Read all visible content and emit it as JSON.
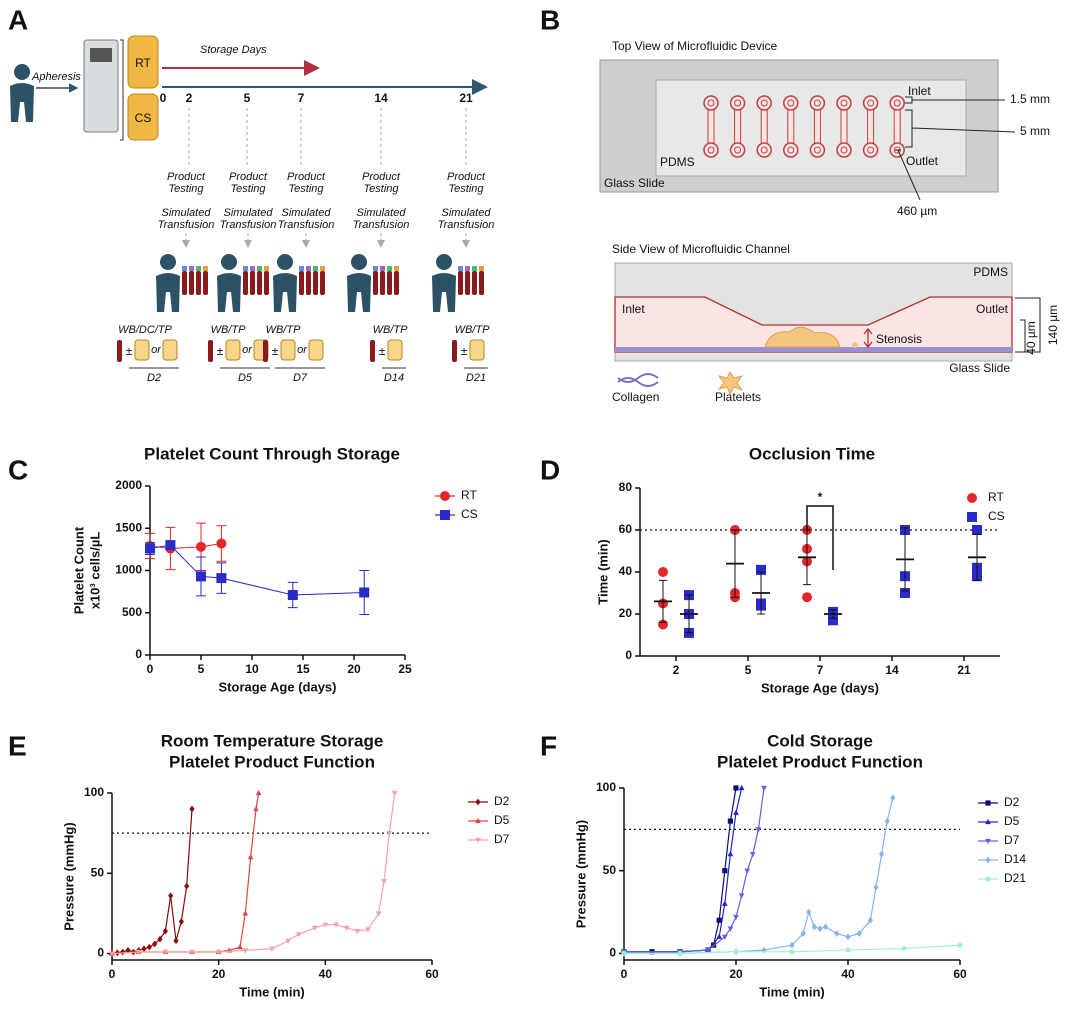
{
  "panel_labels": [
    "A",
    "B",
    "C",
    "D",
    "E",
    "F"
  ],
  "panel_a": {
    "apheresis": "Apheresis",
    "bags": [
      "RT",
      "CS"
    ],
    "timeline_title": "Storage Days",
    "days": [
      "0",
      "2",
      "5",
      "7",
      "14",
      "21"
    ],
    "product_testing": [
      "Product",
      "Testing"
    ],
    "simulated_transfusion": [
      "Simulated",
      "Transfusion"
    ],
    "plus_minus": "±",
    "or": "or",
    "products": [
      {
        "label": "WB/DC/TP",
        "day": "D2"
      },
      {
        "label": "WB/TP",
        "day": "D5"
      },
      {
        "label": "WB/TP",
        "day": "D7"
      },
      {
        "label": "WB/TP",
        "day": "D14"
      },
      {
        "label": "WB/TP",
        "day": "D21"
      }
    ]
  },
  "panel_b": {
    "top_title": "Top View of Microfluidic Device",
    "inlet": "Inlet",
    "outlet": "Outlet",
    "dim_inlet": "1.5 mm",
    "dim_length": "5 mm",
    "dim_width": "460 µm",
    "pdms": "PDMS",
    "glass": "Glass Slide",
    "side_title": "Side View of Microfluidic Channel",
    "stenosis": "Stenosis",
    "height_total": "140 µm",
    "height_stenosis": "40 µm",
    "legend": [
      "Collagen",
      "Platelets"
    ]
  },
  "chart_data": [
    {
      "type": "line",
      "title": [
        "Platelet Count Through Storage"
      ],
      "xlabel": "Storage Age (days)",
      "ylabel": [
        "Platelet Count",
        "x10³ cells/µL"
      ],
      "xlim": [
        0,
        25
      ],
      "xticks": [
        0,
        5,
        10,
        15,
        20,
        25
      ],
      "ylim": [
        0,
        2000
      ],
      "yticks": [
        0,
        500,
        1000,
        1500,
        2000
      ],
      "legend": "right",
      "series": [
        {
          "name": "RT",
          "color": "#e3262a",
          "marker": "circle",
          "x": [
            0,
            2,
            5,
            7
          ],
          "values": [
            1290,
            1260,
            1280,
            1320
          ],
          "errors": [
            150,
            250,
            280,
            210
          ]
        },
        {
          "name": "CS",
          "color": "#2b2bc8",
          "marker": "square",
          "x": [
            0,
            2,
            5,
            7,
            14,
            21
          ],
          "values": [
            1260,
            1300,
            930,
            910,
            710,
            740
          ],
          "errors": [
            70,
            50,
            230,
            180,
            150,
            260
          ]
        }
      ]
    },
    {
      "type": "dot",
      "title": [
        "Occlusion Time"
      ],
      "xlabel": "Storage Age (days)",
      "ylabel": [
        "Time (min)"
      ],
      "categories": [
        "2",
        "5",
        "7",
        "14",
        "21"
      ],
      "ylim": [
        0,
        80
      ],
      "yticks": [
        0,
        20,
        40,
        60,
        80
      ],
      "reference_line": 60,
      "annotation": "*",
      "legend": "right",
      "series": [
        {
          "name": "RT",
          "color": "#e3262a",
          "marker": "circle",
          "values": [
            [
              40,
              25,
              15
            ],
            [
              60,
              60,
              30,
              28
            ],
            [
              60,
              51,
              45,
              28
            ],
            null,
            null
          ],
          "means": [
            26,
            44,
            47,
            null,
            null
          ],
          "sd": [
            10,
            16,
            13,
            null,
            null
          ]
        },
        {
          "name": "CS",
          "color": "#2b2bc8",
          "marker": "square",
          "values": [
            [
              29,
              20,
              11
            ],
            [
              41,
              25,
              24
            ],
            [
              21,
              20,
              17
            ],
            [
              60,
              38,
              30
            ],
            [
              60,
              42,
              38
            ]
          ],
          "means": [
            20,
            30,
            20,
            46,
            47
          ],
          "sd": [
            9,
            10,
            2,
            15,
            11
          ]
        }
      ]
    },
    {
      "type": "line",
      "title": [
        "Room Temperature Storage",
        "Platelet Product Function"
      ],
      "xlabel": "Time (min)",
      "ylabel": [
        "Pressure (mmHg)"
      ],
      "xlim": [
        0,
        60
      ],
      "xticks": [
        0,
        20,
        40,
        60
      ],
      "ylim": [
        -4,
        100
      ],
      "yticks": [
        0,
        50,
        100
      ],
      "reference_line": 75,
      "legend": "right",
      "series": [
        {
          "name": "D2",
          "color": "#8b0a0a",
          "marker": "diamond",
          "x": [
            0,
            1,
            2,
            3,
            4,
            5,
            6,
            7,
            8,
            9,
            10,
            11,
            12,
            13,
            14,
            15
          ],
          "values": [
            0,
            0.5,
            1,
            2,
            1,
            2,
            3,
            4,
            6,
            9,
            14,
            36,
            8,
            20,
            42,
            90
          ]
        },
        {
          "name": "D5",
          "color": "#e04545",
          "marker": "triangle-up",
          "x": [
            0,
            5,
            10,
            15,
            20,
            22,
            24,
            25,
            26,
            27,
            27.5
          ],
          "values": [
            0,
            1,
            1,
            1,
            1,
            2,
            4,
            25,
            60,
            90,
            100
          ]
        },
        {
          "name": "D7",
          "color": "#f4a3a3",
          "marker": "triangle-down",
          "x": [
            0,
            5,
            10,
            15,
            20,
            25,
            30,
            33,
            35,
            38,
            40,
            42,
            44,
            46,
            48,
            50,
            51,
            52,
            53
          ],
          "values": [
            0,
            1,
            1,
            1,
            1,
            2,
            3,
            8,
            12,
            16,
            18,
            18,
            16,
            14,
            15,
            25,
            45,
            75,
            100
          ]
        }
      ]
    },
    {
      "type": "line",
      "title": [
        "Cold Storage",
        "Platelet Product Function"
      ],
      "xlabel": "Time (min)",
      "ylabel": [
        "Pressure (mmHg)"
      ],
      "xlim": [
        0,
        60
      ],
      "xticks": [
        0,
        20,
        40,
        60
      ],
      "ylim": [
        -4,
        100
      ],
      "yticks": [
        0,
        50,
        100
      ],
      "reference_line": 75,
      "legend": "right",
      "series": [
        {
          "name": "D2",
          "color": "#0c0c78",
          "marker": "square",
          "x": [
            0,
            5,
            10,
            15,
            16,
            17,
            18,
            19,
            20
          ],
          "values": [
            1,
            1,
            1,
            2,
            5,
            20,
            50,
            80,
            100
          ]
        },
        {
          "name": "D5",
          "color": "#2121d0",
          "marker": "triangle-up",
          "x": [
            0,
            10,
            15,
            17,
            18,
            19,
            20,
            21
          ],
          "values": [
            1,
            1,
            2,
            10,
            30,
            60,
            85,
            100
          ]
        },
        {
          "name": "D7",
          "color": "#6262e0",
          "marker": "triangle-down",
          "x": [
            0,
            10,
            15,
            18,
            19,
            20,
            21,
            22,
            23,
            24,
            25
          ],
          "values": [
            1,
            1,
            2,
            10,
            15,
            22,
            35,
            50,
            60,
            75,
            100
          ]
        },
        {
          "name": "D14",
          "color": "#86b4f0",
          "marker": "diamond",
          "x": [
            0,
            10,
            20,
            25,
            30,
            32,
            33,
            34,
            35,
            36,
            38,
            40,
            42,
            44,
            45,
            46,
            47,
            48
          ],
          "values": [
            0,
            0,
            1,
            2,
            5,
            12,
            25,
            16,
            15,
            16,
            12,
            10,
            12,
            20,
            40,
            60,
            80,
            94
          ]
        },
        {
          "name": "D21",
          "color": "#9ff0d8",
          "marker": "circle",
          "x": [
            0,
            10,
            20,
            30,
            40,
            50,
            60
          ],
          "values": [
            0,
            0,
            1,
            1,
            2,
            3,
            5
          ]
        }
      ]
    }
  ]
}
